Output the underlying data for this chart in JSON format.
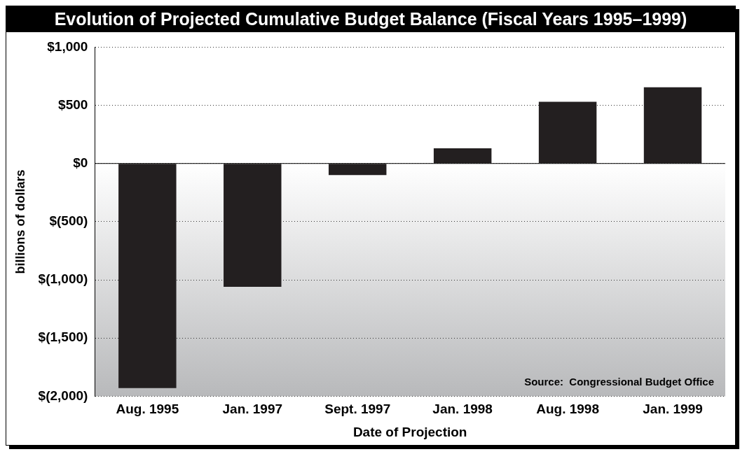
{
  "chart_data": {
    "type": "bar",
    "title": "Evolution of Projected Cumulative Budget Balance (Fiscal Years 1995–1999)",
    "xlabel": "Date of Projection",
    "ylabel": "billions of dollars",
    "categories": [
      "Aug. 1995",
      "Jan. 1997",
      "Sept. 1997",
      "Jan. 1998",
      "Aug. 1998",
      "Jan. 1999"
    ],
    "values": [
      -1930,
      -1060,
      -100,
      130,
      530,
      655
    ],
    "color": "#231f20",
    "ylim": [
      -2000,
      1000
    ],
    "yticks": [
      {
        "value": -2000,
        "label": "$(2,000)"
      },
      {
        "value": -1500,
        "label": "$(1,500)"
      },
      {
        "value": -1000,
        "label": "$(1,000)"
      },
      {
        "value": -500,
        "label": "$(500)"
      },
      {
        "value": 0,
        "label": "$0"
      },
      {
        "value": 500,
        "label": "$500"
      },
      {
        "value": 1000,
        "label": "$1,000"
      }
    ],
    "grid": "y",
    "legend": false,
    "bands": [
      {
        "axis": "y",
        "from": 0,
        "to": -2000,
        "color": "#b8b9bb"
      }
    ],
    "annotations": [
      "Source:  Congressional Budget Office"
    ]
  }
}
